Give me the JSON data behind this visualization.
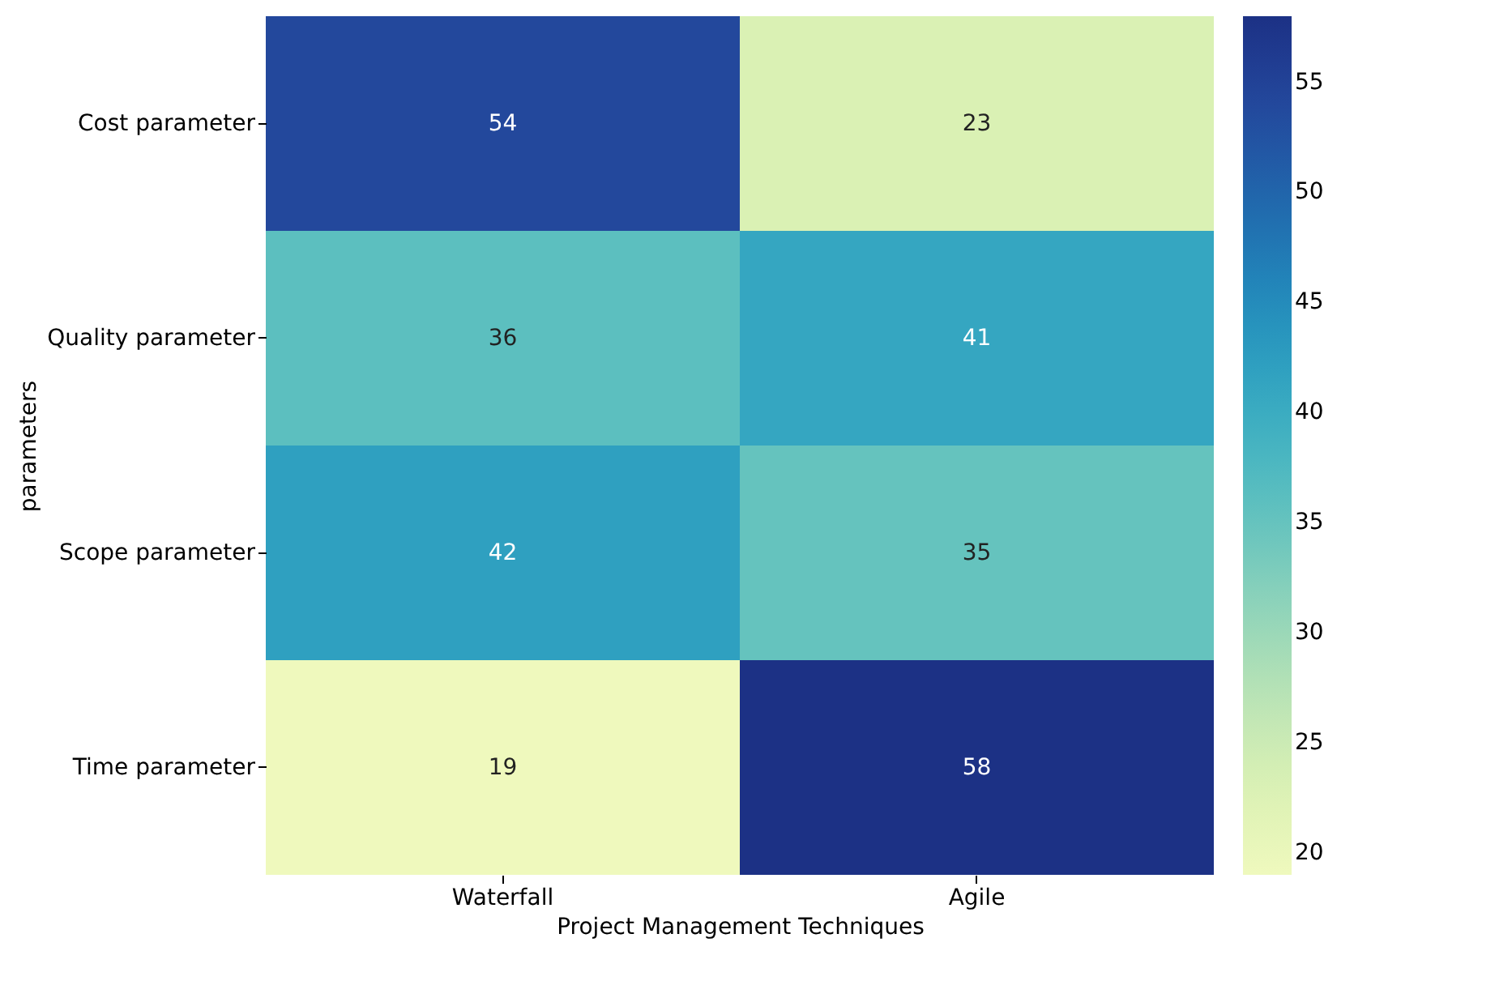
{
  "chart_data": {
    "type": "heatmap",
    "xlabel": "Project Management Techniques",
    "ylabel": "parameters",
    "categories": [
      "Waterfall",
      "Agile"
    ],
    "y_categories": [
      "Cost parameter",
      "Quality parameter",
      "Scope parameter",
      "Time parameter"
    ],
    "cells": [
      [
        54,
        23
      ],
      [
        36,
        41
      ],
      [
        42,
        35
      ],
      [
        19,
        58
      ]
    ],
    "clim": [
      19,
      58
    ],
    "cticks": [
      20,
      25,
      30,
      35,
      40,
      45,
      50,
      55
    ],
    "data_labels": true
  }
}
